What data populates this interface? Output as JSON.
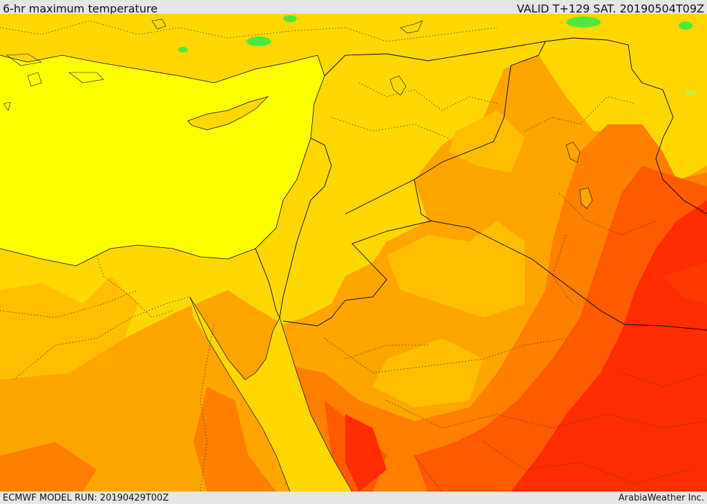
{
  "header": {
    "title": "6-hr maximum temperature",
    "valid_time": "VALID T+129 SAT. 20190504T09Z"
  },
  "footer": {
    "model_run": "ECMWF MODEL RUN: 20190429T00Z",
    "credit": "ArabiaWeather Inc."
  },
  "map": {
    "colors": {
      "green": "#4ee840",
      "yellow_green": "#c8f03c",
      "yellow": "#ffff00",
      "gold": "#ffd700",
      "light_orange": "#ffbf00",
      "orange": "#ffa500",
      "dark_orange": "#ff7f00",
      "orange_red": "#ff5a00",
      "red": "#ff2d00"
    }
  }
}
